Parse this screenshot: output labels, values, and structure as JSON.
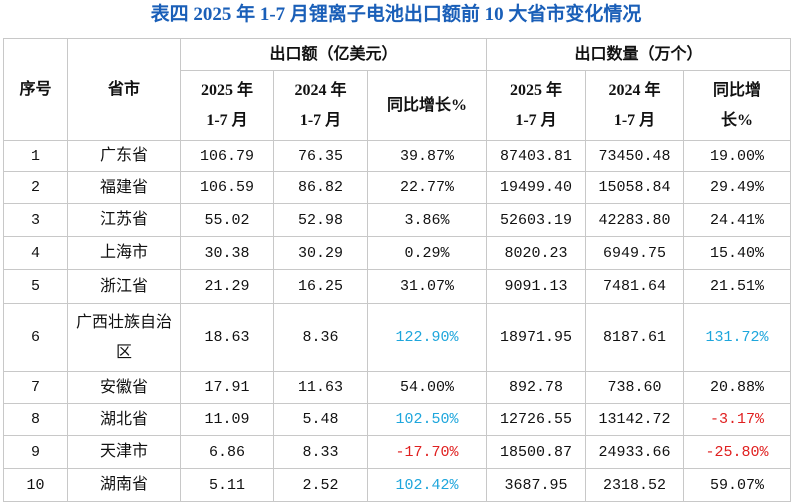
{
  "header": {
    "title": "表四 2025 年 1-7 月锂离子电池出口额前 10 大省市变化情况"
  },
  "table": {
    "head": {
      "index": "序号",
      "province": "省市",
      "group1": "出口额（亿美元）",
      "group2": "出口数量（万个）",
      "sub": [
        "2025 年\n1-7 月",
        "2024 年\n1-7 月",
        "同比增长%",
        "2025 年\n1-7 月",
        "2024 年\n1-7 月",
        "同比增\n长%"
      ]
    },
    "rows": [
      [
        "1",
        "广东省",
        "106.79",
        "76.35",
        "39.87%",
        "87403.81",
        "73450.48",
        "19.00%"
      ],
      [
        "2",
        "福建省",
        "106.59",
        "86.82",
        "22.77%",
        "19499.40",
        "15058.84",
        "29.49%"
      ],
      [
        "3",
        "江苏省",
        "55.02",
        "52.98",
        "3.86%",
        "52603.19",
        "42283.80",
        "24.41%"
      ],
      [
        "4",
        "上海市",
        "30.38",
        "30.29",
        "0.29%",
        "8020.23",
        "6949.75",
        "15.40%"
      ],
      [
        "5",
        "浙江省",
        "21.29",
        "16.25",
        "31.07%",
        "9091.13",
        "7481.64",
        "21.51%"
      ],
      [
        "6",
        "广西壮族自治区",
        "18.63",
        "8.36",
        {
          "text": "122.90%",
          "color": "#1ea6dc"
        },
        "18971.95",
        "8187.61",
        {
          "text": "131.72%",
          "color": "#1ea6dc"
        }
      ],
      [
        "7",
        "安徽省",
        "17.91",
        "11.63",
        "54.00%",
        "892.78",
        "738.60",
        "20.88%"
      ],
      [
        "8",
        "湖北省",
        "11.09",
        "5.48",
        {
          "text": "102.50%",
          "color": "#1ea6dc"
        },
        "12726.55",
        "13142.72",
        {
          "text": "-3.17%",
          "color": "#e02020"
        }
      ],
      [
        "9",
        "天津市",
        "6.86",
        "8.33",
        {
          "text": "-17.70%",
          "color": "#e02020"
        },
        "18500.87",
        "24933.66",
        {
          "text": "-25.80%",
          "color": "#e02020"
        }
      ],
      [
        "10",
        "湖南省",
        "5.11",
        "2.52",
        {
          "text": "102.42%",
          "color": "#1ea6dc"
        },
        "3687.95",
        "2318.52",
        "59.07%"
      ]
    ]
  }
}
